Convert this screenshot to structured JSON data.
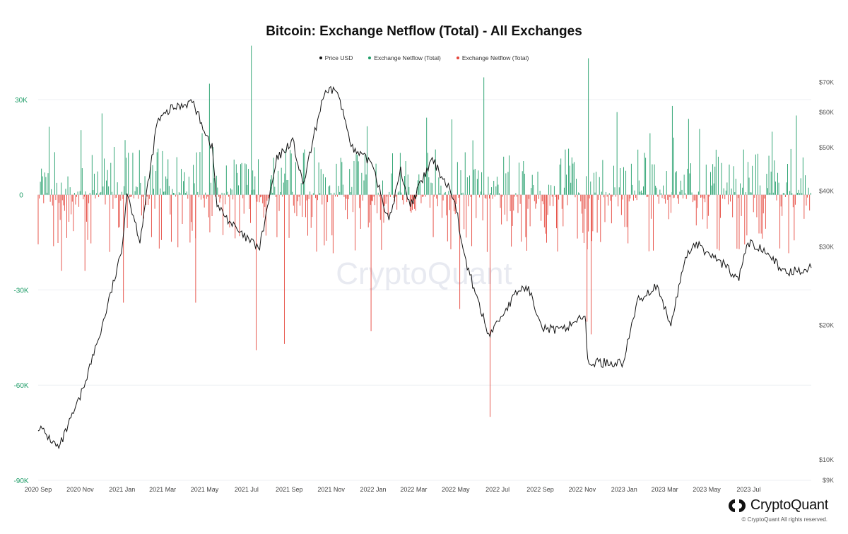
{
  "title": "Bitcoin: Exchange Netflow (Total) - All Exchanges",
  "legend": [
    {
      "label": "Price USD",
      "color": "#111111"
    },
    {
      "label": "Exchange Netflow (Total)",
      "color": "#1f9d68"
    },
    {
      "label": "Exchange Netflow (Total)",
      "color": "#e5463c"
    }
  ],
  "watermark": "CryptoQuant",
  "brand": {
    "name": "CryptoQuant",
    "copyright": "© CryptoQuant All rights reserved."
  },
  "chart_data": {
    "type": "bar",
    "title": "Bitcoin: Exchange Netflow (Total) - All Exchanges",
    "x_range": [
      "2020-09-01",
      "2023-09-30"
    ],
    "x_ticks": [
      "2020 Sep",
      "2020 Nov",
      "2021 Jan",
      "2021 Mar",
      "2021 May",
      "2021 Jul",
      "2021 Sep",
      "2021 Nov",
      "2022 Jan",
      "2022 Mar",
      "2022 May",
      "2022 Jul",
      "2022 Sep",
      "2022 Nov",
      "2023 Jan",
      "2023 Mar",
      "2023 May",
      "2023 Jul"
    ],
    "y_left": {
      "ticks": [
        "30K",
        "0",
        "-30K",
        "-60K",
        "-90K"
      ],
      "range": [
        -90000,
        38000
      ]
    },
    "y_right": {
      "ticks": [
        "$70K",
        "$60K",
        "$50K",
        "$40K",
        "$30K",
        "$20K",
        "$10K",
        "$9K"
      ],
      "scale": "log",
      "range": [
        9000,
        73000
      ]
    },
    "grid": true,
    "legend_position": "top-center",
    "colors": {
      "price": "#111111",
      "inflow": "#1f9d68",
      "outflow": "#e5463c"
    },
    "series": [
      {
        "name": "Price USD",
        "axis": "right",
        "type": "line",
        "x": [
          "2020-09-01",
          "2020-10-01",
          "2020-11-01",
          "2020-12-01",
          "2020-12-31",
          "2021-01-08",
          "2021-01-27",
          "2021-02-21",
          "2021-03-13",
          "2021-04-13",
          "2021-05-12",
          "2021-05-19",
          "2021-06-22",
          "2021-07-20",
          "2021-08-14",
          "2021-09-06",
          "2021-09-21",
          "2021-10-20",
          "2021-11-08",
          "2021-12-04",
          "2021-12-31",
          "2022-01-24",
          "2022-02-10",
          "2022-02-24",
          "2022-03-28",
          "2022-04-30",
          "2022-05-12",
          "2022-06-18",
          "2022-07-31",
          "2022-08-13",
          "2022-09-06",
          "2022-09-30",
          "2022-11-05",
          "2022-11-09",
          "2022-12-31",
          "2023-01-20",
          "2023-02-16",
          "2023-03-10",
          "2023-03-31",
          "2023-04-14",
          "2023-05-31",
          "2023-06-15",
          "2023-06-30",
          "2023-07-31",
          "2023-08-17",
          "2023-09-30"
        ],
        "y": [
          11900,
          10600,
          13800,
          19400,
          29000,
          40000,
          31000,
          57000,
          61000,
          63500,
          50000,
          37000,
          32000,
          29800,
          47000,
          52000,
          41000,
          65000,
          68000,
          49000,
          46300,
          34000,
          44500,
          37000,
          47000,
          38500,
          29000,
          19000,
          23900,
          24400,
          19800,
          19400,
          21200,
          16500,
          16500,
          22700,
          24500,
          20000,
          28500,
          30500,
          27000,
          25100,
          30500,
          29400,
          26200,
          26900
        ]
      },
      {
        "name": "Exchange Netflow (Total)",
        "axis": "left",
        "type": "bar",
        "spikes": [
          {
            "x": "2020-10-05",
            "y": -24000
          },
          {
            "x": "2020-11-08",
            "y": -24000
          },
          {
            "x": "2021-01-03",
            "y": -34000
          },
          {
            "x": "2021-04-18",
            "y": -34000
          },
          {
            "x": "2021-05-08",
            "y": 35000
          },
          {
            "x": "2021-07-08",
            "y": 47000
          },
          {
            "x": "2021-07-15",
            "y": -49000
          },
          {
            "x": "2021-08-25",
            "y": -47000
          },
          {
            "x": "2021-12-29",
            "y": -43000
          },
          {
            "x": "2022-05-07",
            "y": -36000
          },
          {
            "x": "2022-06-11",
            "y": 37000
          },
          {
            "x": "2022-06-20",
            "y": -70000
          },
          {
            "x": "2022-11-08",
            "y": -40000
          },
          {
            "x": "2022-11-10",
            "y": 43000
          },
          {
            "x": "2022-11-14",
            "y": -44000
          },
          {
            "x": "2023-03-12",
            "y": 28000
          },
          {
            "x": "2023-03-14",
            "y": 18000
          }
        ]
      }
    ]
  }
}
